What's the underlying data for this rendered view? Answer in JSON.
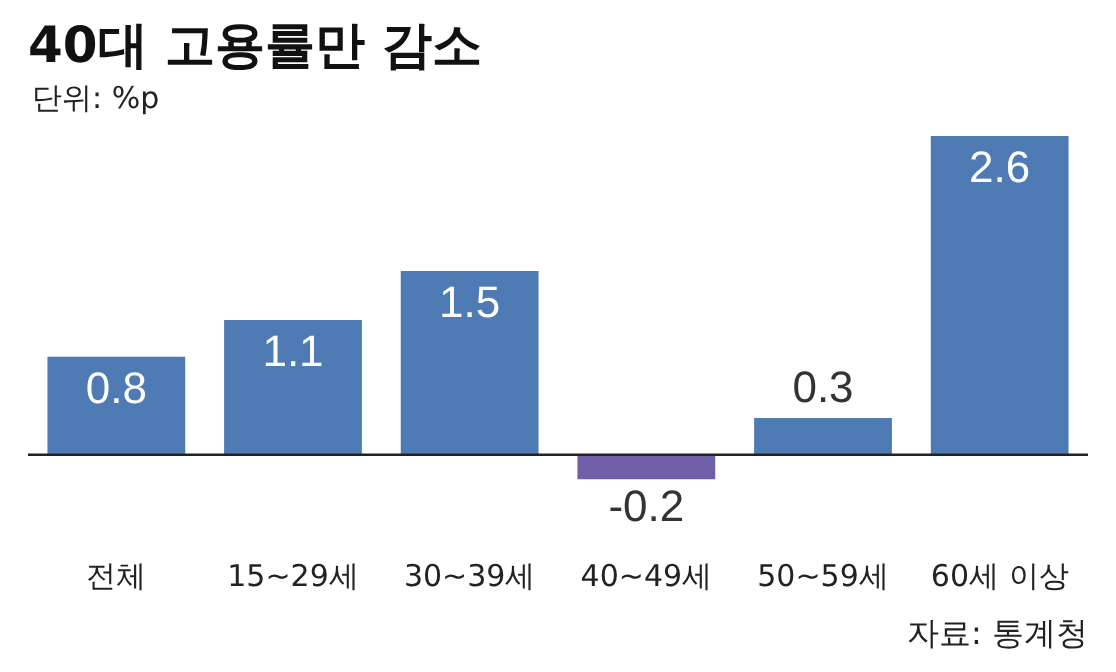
{
  "chart_data": {
    "type": "bar",
    "title": "40대 고용률만 감소",
    "subtitle": "단위: %p",
    "categories": [
      "전체",
      "15~29세",
      "30~39세",
      "40~49세",
      "50~59세",
      "60세 이상"
    ],
    "values": [
      0.8,
      1.1,
      1.5,
      -0.2,
      0.3,
      2.6
    ],
    "colors": [
      "#4f7bb5",
      "#4f7bb5",
      "#4f7bb5",
      "#6f5fa8",
      "#4f7bb5",
      "#4f7bb5"
    ],
    "data_labels": true,
    "grid": false,
    "legend": false,
    "annotations": [
      "자료: 통계청"
    ]
  }
}
